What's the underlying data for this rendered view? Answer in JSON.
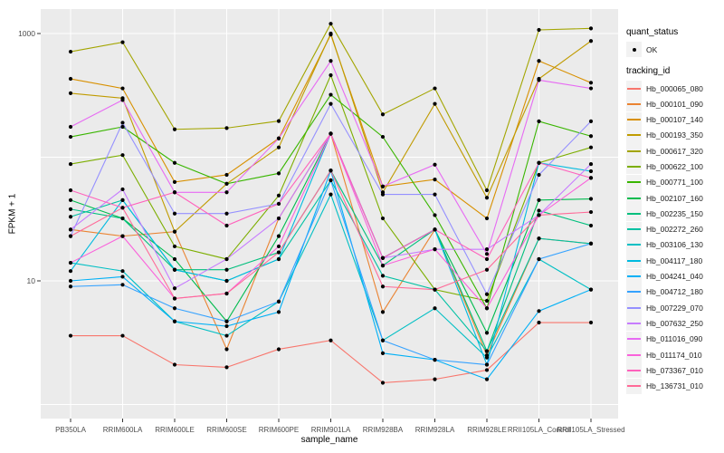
{
  "chart_data": {
    "type": "line",
    "title": "",
    "xlabel": "sample_name",
    "ylabel": "FPKM + 1",
    "y_scale": "log10",
    "y_axis_tick_labels": [
      "1000",
      "10"
    ],
    "y_axis_tick_values": [
      1000,
      10
    ],
    "y_gridline_values": [
      1,
      10,
      100,
      1000
    ],
    "ylim": [
      1.3,
      1400
    ],
    "legend_position": "right",
    "grid": true,
    "panel_bg": "#EBEBEB",
    "grid_color": "#FFFFFF",
    "point_color": "#000000",
    "axis_text_color": "#4D4D4D",
    "categories": [
      "PB350LA",
      "RRIM600LA",
      "RRIM600LE",
      "RRIM600SE",
      "RRIM600PE",
      "RRIM901LA",
      "RRIM928BA",
      "RRIM928LA",
      "RRIM928LE",
      "RRII105LA_Control",
      "RRII105LA_Stressed"
    ],
    "series": [
      {
        "name": "Hb_000065_080",
        "color": "#F8766D",
        "values": [
          3.6,
          3.6,
          2.1,
          2.0,
          2.8,
          3.3,
          1.5,
          1.6,
          1.9,
          4.6,
          4.6
        ]
      },
      {
        "name": "Hb_000101_090",
        "color": "#EA8331",
        "values": [
          26,
          23,
          25,
          2.8,
          32,
          155,
          5.6,
          26,
          2.5,
          22,
          20
        ]
      },
      {
        "name": "Hb_000107_140",
        "color": "#D89000",
        "values": [
          430,
          360,
          63,
          72,
          142,
          980,
          58,
          66,
          32,
          600,
          400
        ]
      },
      {
        "name": "Hb_000193_350",
        "color": "#C09B00",
        "values": [
          329,
          300,
          25,
          61,
          120,
          1000,
          52,
          270,
          47,
          430,
          870
        ]
      },
      {
        "name": "Hb_000617_320",
        "color": "#A3A500",
        "values": [
          713,
          850,
          168,
          172,
          196,
          1200,
          222,
          360,
          54,
          1070,
          1100
        ]
      },
      {
        "name": "Hb_000622_100",
        "color": "#7CAE00",
        "values": [
          88,
          104,
          19,
          15,
          49,
          460,
          32,
          8.5,
          6.9,
          90,
          120
        ]
      },
      {
        "name": "Hb_000771_100",
        "color": "#39B600",
        "values": [
          146,
          176,
          90,
          61,
          74,
          320,
          146,
          34,
          6.0,
          195,
          148
        ]
      },
      {
        "name": "Hb_002107_160",
        "color": "#00BB4E",
        "values": [
          45,
          32,
          15,
          4.7,
          23,
          155,
          15.3,
          26,
          3.8,
          45,
          46
        ]
      },
      {
        "name": "Hb_002235_150",
        "color": "#00BF7D",
        "values": [
          38,
          32,
          12.3,
          12.3,
          17,
          78,
          13.3,
          26,
          2.7,
          37,
          28
        ]
      },
      {
        "name": "Hb_002272_260",
        "color": "#00C1A3",
        "values": [
          33,
          45,
          12.3,
          10,
          15,
          65,
          11,
          8.5,
          2.7,
          22,
          20
        ]
      },
      {
        "name": "Hb_003106_130",
        "color": "#00BFC4",
        "values": [
          14,
          12,
          4.7,
          3.6,
          6.8,
          50,
          3.3,
          6.0,
          2.4,
          15,
          8.5
        ]
      },
      {
        "name": "Hb_004117_180",
        "color": "#00BAE0",
        "values": [
          12,
          45,
          12.3,
          10,
          15,
          155,
          15.3,
          26,
          2.1,
          90,
          77
        ]
      },
      {
        "name": "Hb_004241_040",
        "color": "#00B0F6",
        "values": [
          10,
          10.8,
          4.7,
          4.3,
          5.6,
          78,
          2.6,
          2.3,
          1.6,
          5.7,
          8.5
        ]
      },
      {
        "name": "Hb_004712_180",
        "color": "#35A2FF",
        "values": [
          9,
          9.3,
          6.0,
          4.7,
          6.8,
          65,
          3.3,
          2.3,
          2.1,
          15,
          20
        ]
      },
      {
        "name": "Hb_007229_070",
        "color": "#9590FF",
        "values": [
          23,
          190,
          35,
          35,
          42,
          270,
          50,
          50,
          7.8,
          72,
          195
        ]
      },
      {
        "name": "Hb_007632_250",
        "color": "#C77CFF",
        "values": [
          26,
          55,
          8.7,
          15,
          32,
          155,
          15.3,
          18,
          18,
          34,
          88
        ]
      },
      {
        "name": "Hb_011016_090",
        "color": "#E76BF3",
        "values": [
          176,
          290,
          52,
          52,
          142,
          600,
          58,
          87,
          16.5,
          420,
          360
        ]
      },
      {
        "name": "Hb_011174_010",
        "color": "#FA62DB",
        "values": [
          14,
          23,
          7.2,
          7.9,
          19,
          155,
          13.3,
          18,
          6.0,
          34,
          68
        ]
      },
      {
        "name": "Hb_073367_010",
        "color": "#FF62BC",
        "values": [
          54,
          39,
          52,
          28,
          42,
          155,
          15.3,
          26,
          15,
          90,
          68
        ]
      },
      {
        "name": "Hb_136731_010",
        "color": "#FF6A98",
        "values": [
          23,
          39,
          7.2,
          7.9,
          17,
          78,
          9,
          8.5,
          12.3,
          34,
          36
        ]
      }
    ]
  },
  "legends": {
    "quant_status": {
      "title": "quant_status",
      "items": [
        {
          "label": "OK",
          "marker": "point-icon",
          "color": "#000000"
        }
      ]
    },
    "tracking_id": {
      "title": "tracking_id"
    }
  }
}
